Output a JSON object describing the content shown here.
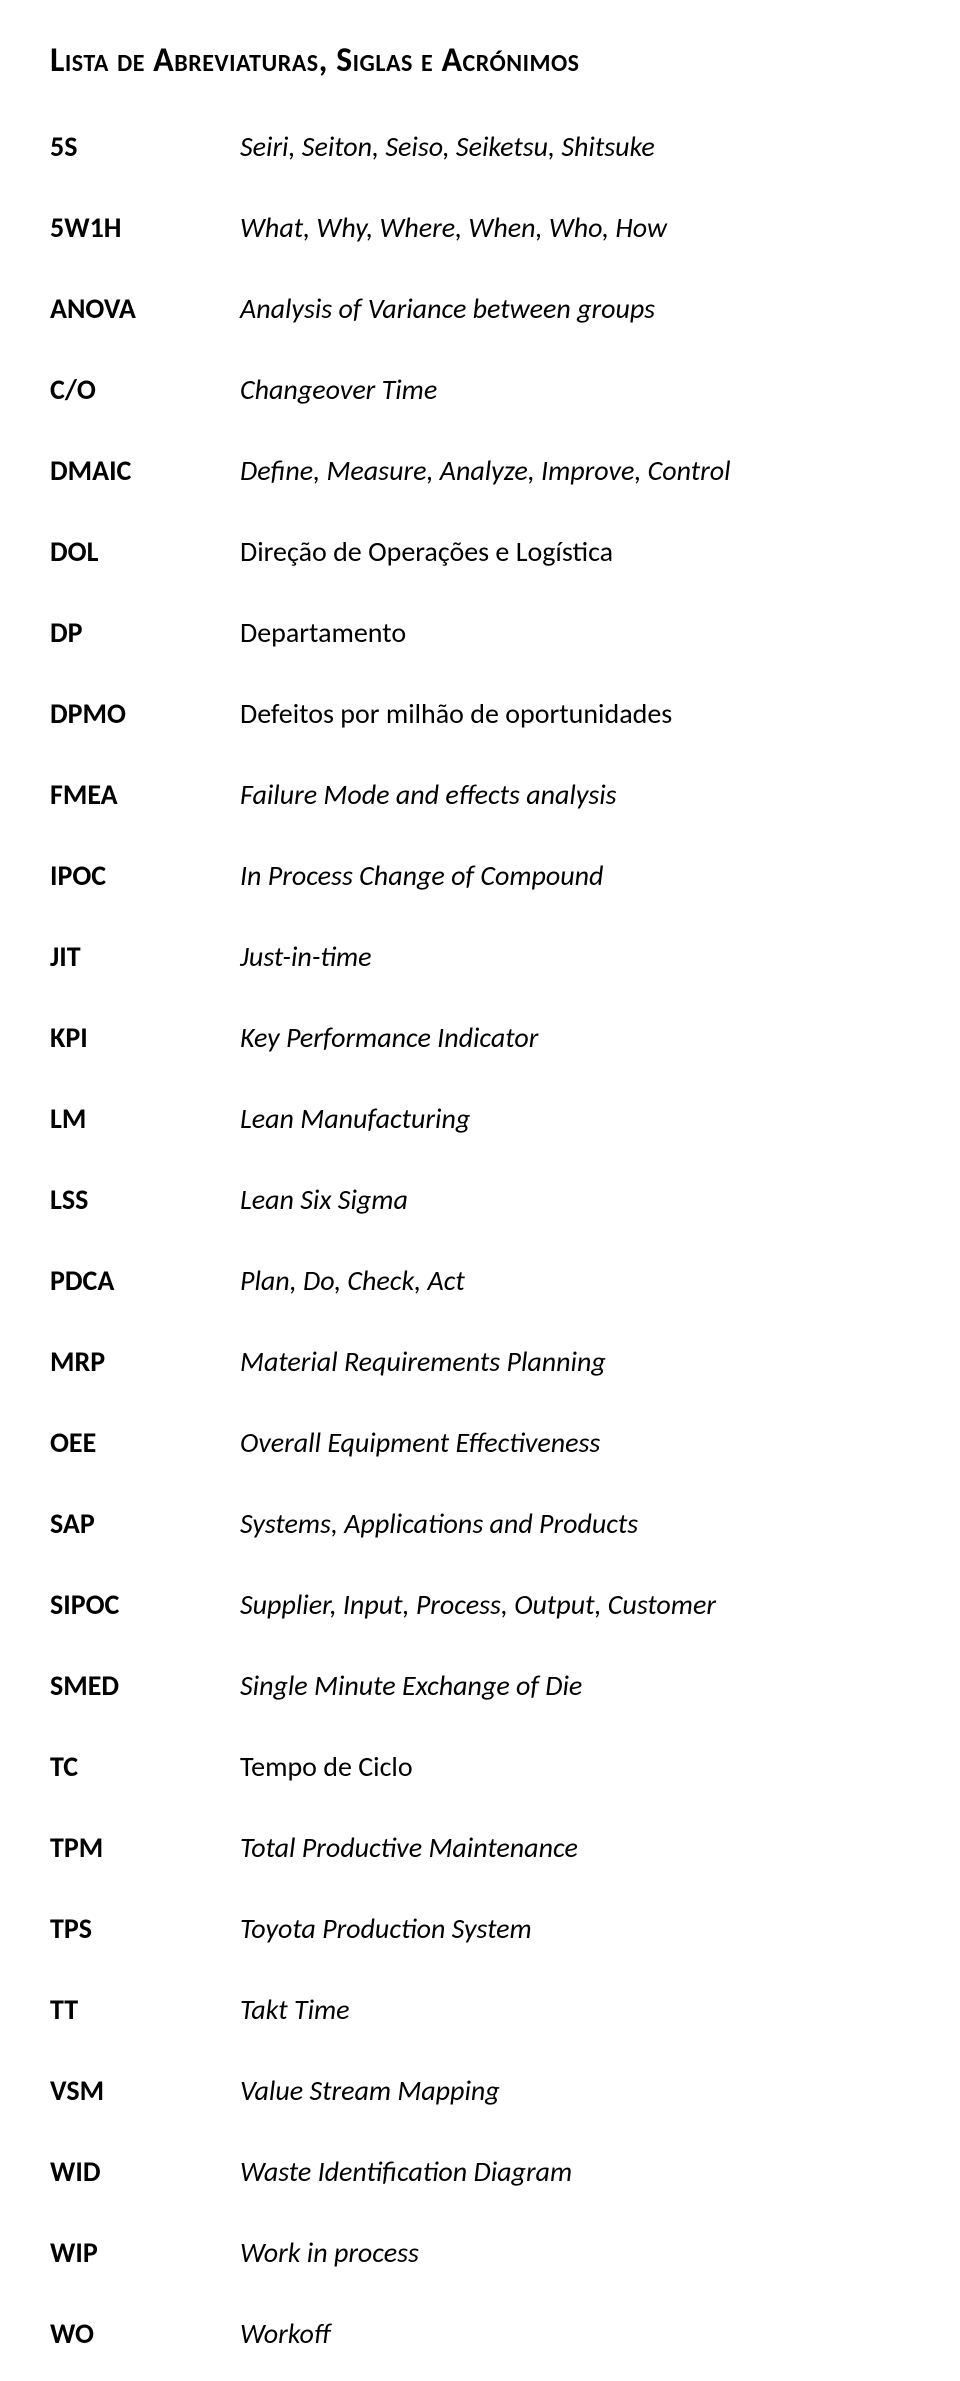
{
  "title": "Lista de Abreviaturas, Siglas e Acrónimos",
  "items": [
    {
      "term": "5S",
      "def": "Seiri, Seiton, Seiso, Seiketsu, Shitsuke",
      "italic": true
    },
    {
      "term": "5W1H",
      "def": "What, Why, Where, When, Who, How",
      "italic": true
    },
    {
      "term": "ANOVA",
      "def": "Analysis of Variance between groups",
      "italic": true
    },
    {
      "term": "C/O",
      "def": "Changeover Time",
      "italic": true
    },
    {
      "term": "DMAIC",
      "def": "Define, Measure, Analyze, Improve, Control",
      "italic": true
    },
    {
      "term": "DOL",
      "def": "Direção de Operações e Logística",
      "italic": false
    },
    {
      "term": "DP",
      "def": "Departamento",
      "italic": false
    },
    {
      "term": "DPMO",
      "def": "Defeitos por milhão de oportunidades",
      "italic": false
    },
    {
      "term": "FMEA",
      "def": "Failure Mode and effects analysis",
      "italic": true
    },
    {
      "term": "IPOC",
      "def": "In Process Change of Compound",
      "italic": true
    },
    {
      "term": "JIT",
      "def": "Just-in-time",
      "italic": true
    },
    {
      "term": "KPI",
      "def": "Key Performance Indicator",
      "italic": true
    },
    {
      "term": "LM",
      "def": "Lean Manufacturing",
      "italic": true
    },
    {
      "term": "LSS",
      "def": "Lean Six Sigma",
      "italic": true
    },
    {
      "term": "PDCA",
      "def": "Plan, Do, Check, Act",
      "italic": true
    },
    {
      "term": "MRP",
      "def": "Material Requirements Planning",
      "italic": true
    },
    {
      "term": "OEE",
      "def": "Overall Equipment Effectiveness",
      "italic": true
    },
    {
      "term": "SAP",
      "def": "Systems, Applications and Products",
      "italic": true
    },
    {
      "term": "SIPOC",
      "def": "Supplier, Input, Process, Output, Customer",
      "italic": true
    },
    {
      "term": "SMED",
      "def": "Single Minute Exchange of Die",
      "italic": true
    },
    {
      "term": "TC",
      "def": "Tempo de Ciclo",
      "italic": false
    },
    {
      "term": "TPM",
      "def": "Total Productive Maintenance",
      "italic": true
    },
    {
      "term": "TPS",
      "def": "Toyota Production System",
      "italic": true
    },
    {
      "term": "TT",
      "def": "Takt Time",
      "italic": true
    },
    {
      "term": "VSM",
      "def": "Value Stream Mapping",
      "italic": true
    },
    {
      "term": "WID",
      "def": "Waste Identification Diagram",
      "italic": true
    },
    {
      "term": "WIP",
      "def": "Work in process",
      "italic": true
    },
    {
      "term": "WO",
      "def": "Workoff",
      "italic": true
    }
  ]
}
